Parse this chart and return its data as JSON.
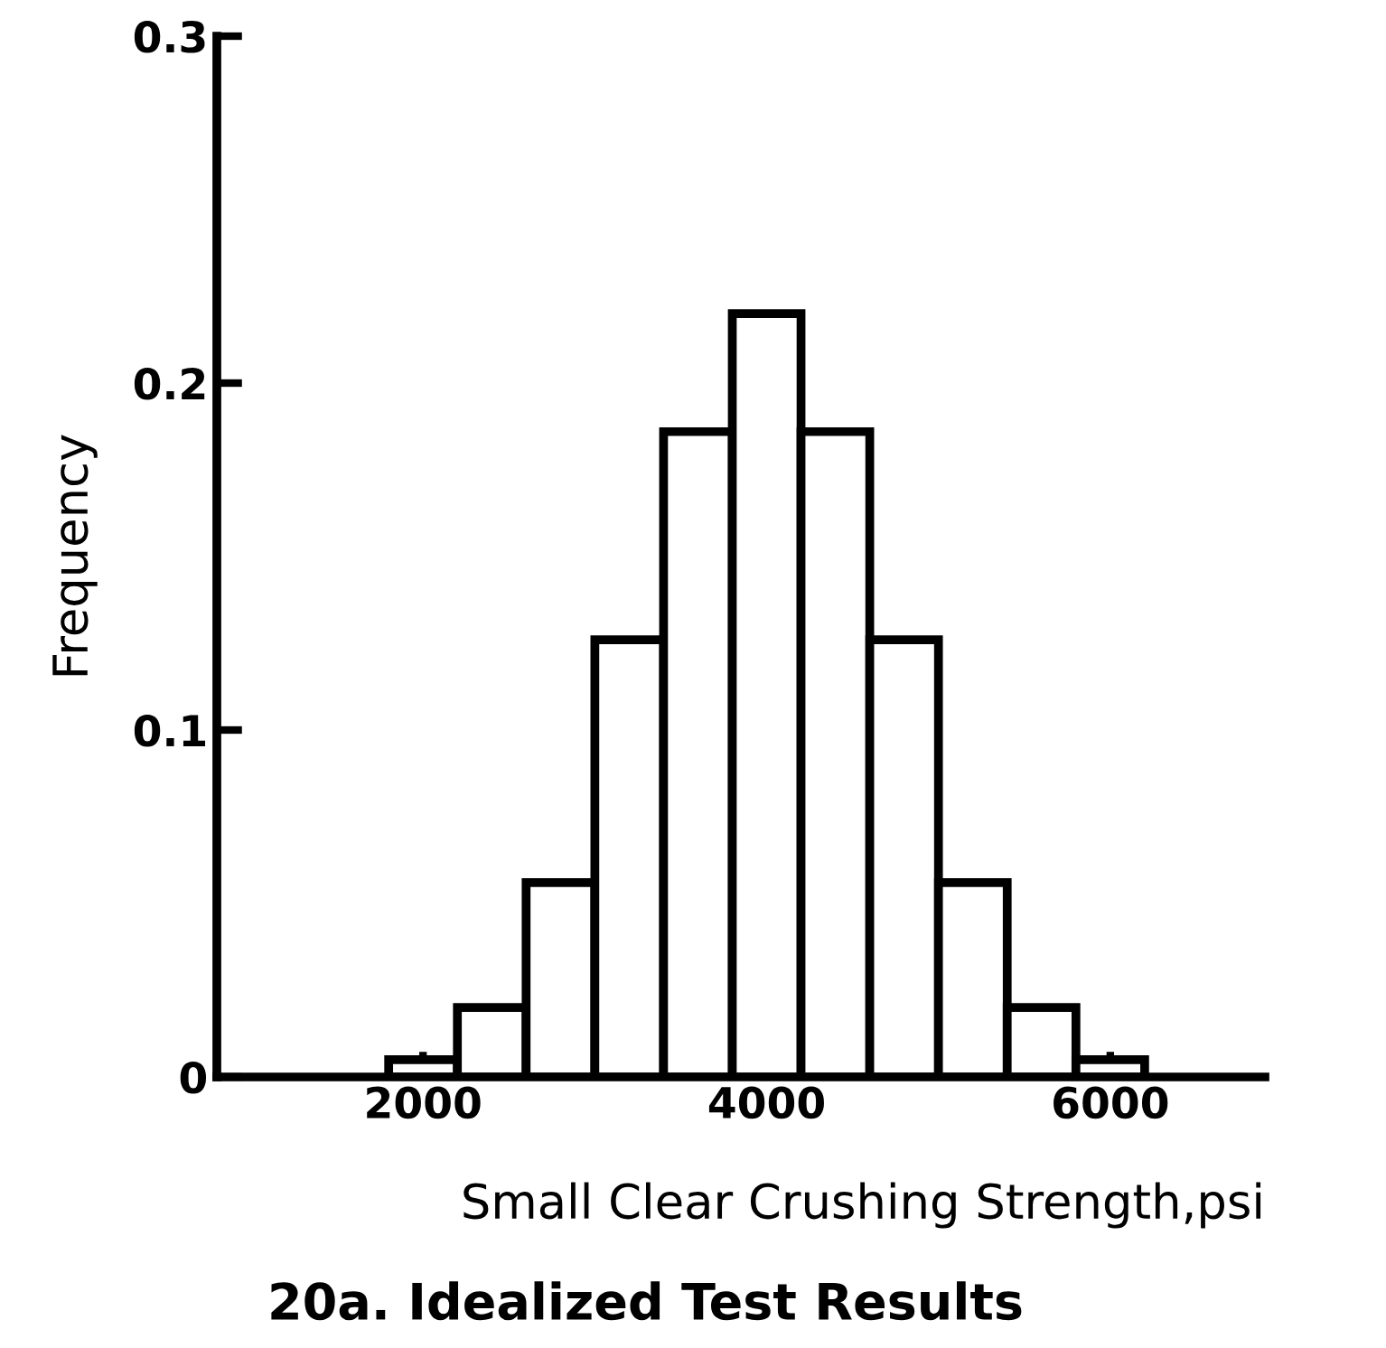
{
  "chart_data": {
    "type": "histogram",
    "title": "20a. Idealized Test Results",
    "xlabel": "Small Clear Crushing Strength,psi",
    "ylabel": "Frequency",
    "bins": [
      1800,
      2200,
      2600,
      3000,
      3400,
      3800,
      4200,
      4600,
      5000,
      5400,
      5800,
      6200
    ],
    "values": [
      0.005,
      0.02,
      0.056,
      0.126,
      0.186,
      0.22,
      0.186,
      0.126,
      0.056,
      0.02,
      0.005
    ],
    "color": "#000000",
    "xlim": [
      800,
      6900
    ],
    "ylim": [
      0,
      0.3
    ],
    "xticks": [
      2000,
      4000,
      6000
    ],
    "yticks": [
      0,
      0.1,
      0.2,
      0.3
    ],
    "grid": false
  }
}
